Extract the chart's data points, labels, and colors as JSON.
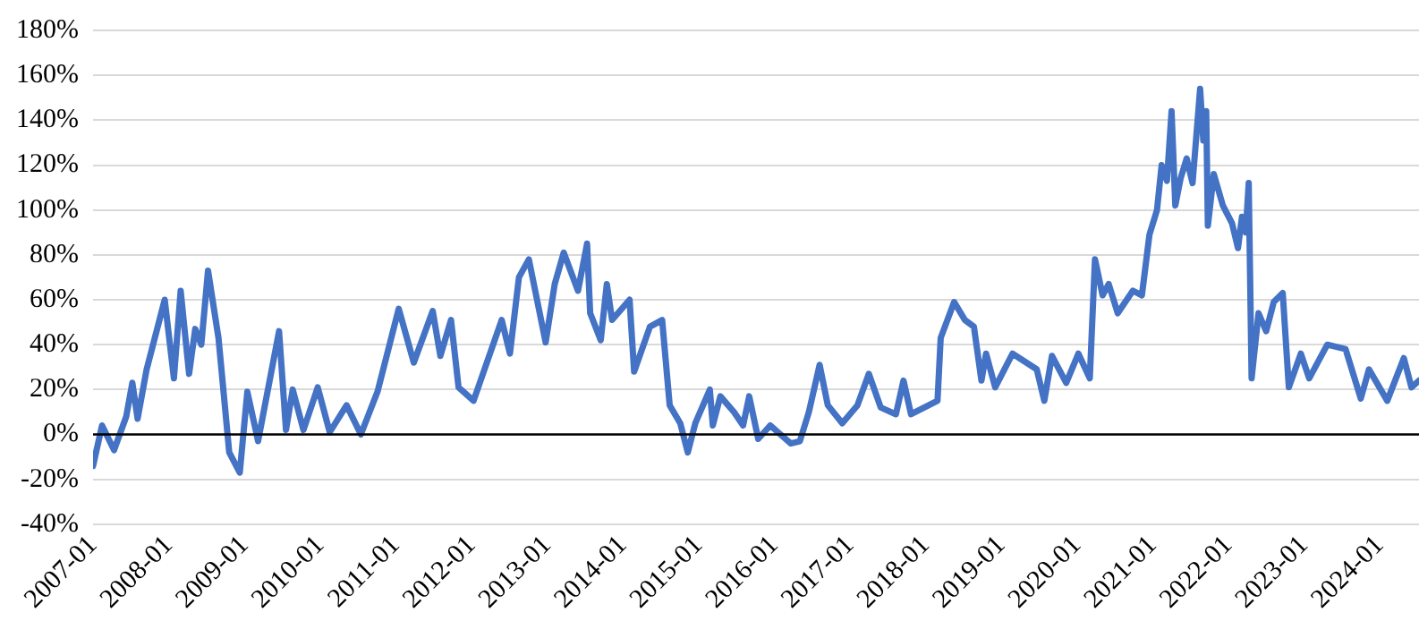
{
  "chart_data": {
    "type": "line",
    "x": [
      "2007-01-01",
      "2007-02-14",
      "2007-04-11",
      "2007-06-09",
      "2007-07-08",
      "2007-08-03",
      "2007-09-16",
      "2007-12-12",
      "2008-01-26",
      "2008-02-28",
      "2008-04-08",
      "2008-05-07",
      "2008-06-06",
      "2008-07-08",
      "2008-08-28",
      "2008-09-20",
      "2008-10-19",
      "2008-12-09",
      "2009-01-15",
      "2009-03-06",
      "2009-06-16",
      "2009-07-19",
      "2009-08-21",
      "2009-10-12",
      "2009-12-20",
      "2010-02-17",
      "2010-05-07",
      "2010-07-15",
      "2010-10-04",
      "2011-01-15",
      "2011-03-27",
      "2011-06-27",
      "2011-08-03",
      "2011-09-24",
      "2011-10-30",
      "2012-01-11",
      "2012-05-25",
      "2012-07-04",
      "2012-08-17",
      "2012-10-04",
      "2012-12-24",
      "2013-02-07",
      "2013-03-20",
      "2013-05-28",
      "2013-07-11",
      "2013-07-26",
      "2013-09-16",
      "2013-10-15",
      "2013-11-10",
      "2014-02-03",
      "2014-02-25",
      "2014-05-10",
      "2014-07-08",
      "2014-08-14",
      "2014-10-04",
      "2014-11-10",
      "2014-12-16",
      "2015-02-25",
      "2015-03-09",
      "2015-04-15",
      "2015-06-20",
      "2015-08-03",
      "2015-09-02",
      "2015-10-15",
      "2015-12-12",
      "2016-03-20",
      "2016-05-03",
      "2016-06-16",
      "2016-08-07",
      "2016-09-16",
      "2016-11-25",
      "2017-02-07",
      "2017-04-01",
      "2017-05-28",
      "2017-08-10",
      "2017-09-16",
      "2017-10-22",
      "2018-02-28",
      "2018-03-13",
      "2018-05-17",
      "2018-07-08",
      "2018-08-21",
      "2018-09-27",
      "2018-10-19",
      "2018-12-02",
      "2019-02-25",
      "2019-06-20",
      "2019-07-26",
      "2019-09-02",
      "2019-11-10",
      "2020-01-08",
      "2020-03-02",
      "2020-03-27",
      "2020-05-03",
      "2020-06-02",
      "2020-07-15",
      "2020-09-27",
      "2020-11-10",
      "2020-12-16",
      "2021-01-22",
      "2021-02-14",
      "2021-03-09",
      "2021-04-01",
      "2021-04-19",
      "2021-05-14",
      "2021-06-13",
      "2021-07-11",
      "2021-08-17",
      "2021-09-02",
      "2021-09-16",
      "2021-09-24",
      "2021-10-22",
      "2021-12-05",
      "2022-01-19",
      "2022-02-17",
      "2022-03-06",
      "2022-03-24",
      "2022-04-08",
      "2022-04-22",
      "2022-05-25",
      "2022-07-01",
      "2022-08-07",
      "2022-09-20",
      "2022-10-19",
      "2022-12-16",
      "2023-01-26",
      "2023-04-22",
      "2023-07-19",
      "2023-10-01",
      "2023-11-10",
      "2024-02-07",
      "2024-04-26",
      "2024-06-02",
      "2024-07-08"
    ],
    "series": [
      {
        "color": "#4472c4",
        "values": [
          -14,
          4,
          -7,
          8,
          23,
          7,
          29,
          60,
          25,
          64,
          27,
          47,
          40,
          73,
          43,
          21,
          -8,
          -17,
          19,
          -3,
          46,
          2,
          20,
          2,
          21,
          1,
          13,
          0,
          19,
          56,
          32,
          55,
          35,
          51,
          21,
          15,
          51,
          36,
          70,
          78,
          41,
          67,
          81,
          64,
          85,
          54,
          42,
          67,
          51,
          60,
          28,
          48,
          51,
          13,
          5,
          -8,
          5,
          20,
          4,
          17,
          10,
          4,
          17,
          -2,
          4,
          -4,
          -3,
          10,
          31,
          13,
          5,
          13,
          27,
          12,
          9,
          24,
          9,
          15,
          43,
          59,
          51,
          48,
          24,
          36,
          21,
          36,
          29,
          15,
          35,
          23,
          36,
          25,
          78,
          62,
          67,
          54,
          64,
          62,
          89,
          100,
          120,
          113,
          144,
          102,
          114,
          123,
          112,
          154,
          131,
          144,
          93,
          116,
          102,
          94,
          83,
          97,
          90,
          112,
          25,
          54,
          46,
          59,
          63,
          21,
          36,
          25,
          40,
          38,
          16,
          29,
          15,
          34,
          21,
          24
        ]
      }
    ],
    "xlim": [
      "2007-01-01",
      "2024-07-08"
    ],
    "xticks": [
      "2007-01",
      "2008-01",
      "2009-01",
      "2010-01",
      "2011-01",
      "2012-01",
      "2013-01",
      "2014-01",
      "2015-01",
      "2016-01",
      "2017-01",
      "2018-01",
      "2019-01",
      "2020-01",
      "2021-01",
      "2022-01",
      "2023-01",
      "2024-01"
    ],
    "ylim": [
      -40,
      180
    ],
    "yticks": [
      {
        "value": -40,
        "label": "-40%"
      },
      {
        "value": -20,
        "label": "-20%"
      },
      {
        "value": 0,
        "label": "0%"
      },
      {
        "value": 20,
        "label": "20%"
      },
      {
        "value": 40,
        "label": "40%"
      },
      {
        "value": 60,
        "label": "60%"
      },
      {
        "value": 80,
        "label": "80%"
      },
      {
        "value": 100,
        "label": "100%"
      },
      {
        "value": 120,
        "label": "120%"
      },
      {
        "value": 140,
        "label": "140%"
      },
      {
        "value": 160,
        "label": "160%"
      },
      {
        "value": 180,
        "label": "180%"
      }
    ],
    "ref_lines": [
      {
        "axis": "y",
        "value": 0,
        "color": "#000000"
      }
    ],
    "grid": "y",
    "legend": false,
    "marker": "none",
    "line_style": "solid"
  }
}
